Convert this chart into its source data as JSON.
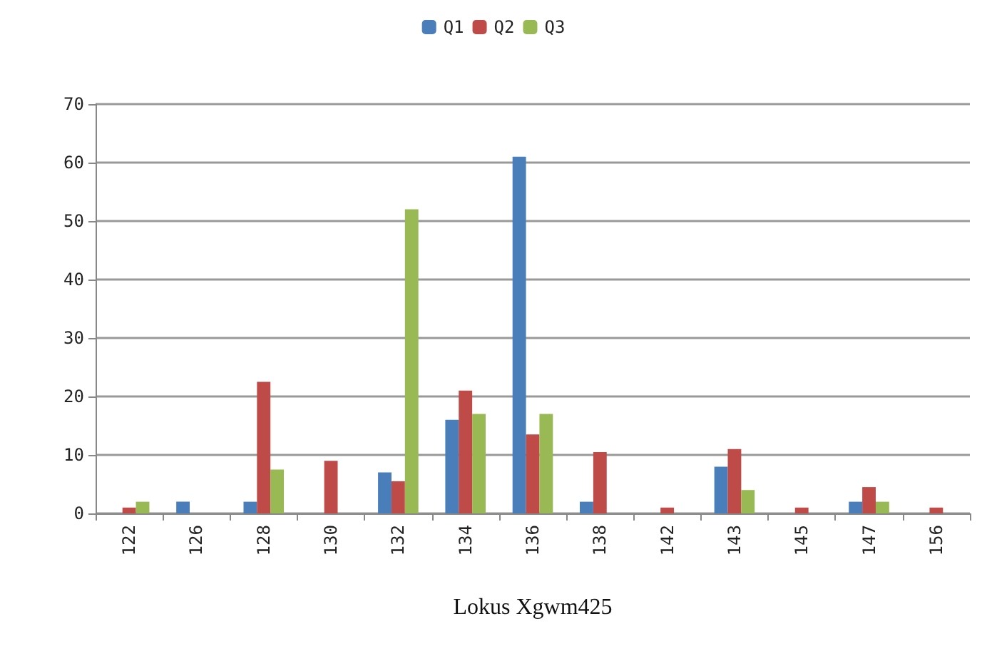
{
  "chart_data": {
    "type": "bar",
    "xlabel": "Lokus Xgwm425",
    "categories": [
      "122",
      "126",
      "128",
      "130",
      "132",
      "134",
      "136",
      "138",
      "142",
      "143",
      "145",
      "147",
      "156"
    ],
    "series": [
      {
        "name": "Q1",
        "color": "#4a7ebb",
        "values": [
          0,
          2,
          2,
          0,
          7,
          16,
          61,
          2,
          0,
          8,
          0,
          2,
          0
        ]
      },
      {
        "name": "Q2",
        "color": "#be4b48",
        "values": [
          1,
          0,
          22.5,
          9,
          5.5,
          21,
          13.5,
          10.5,
          1,
          11,
          1,
          4.5,
          1
        ]
      },
      {
        "name": "Q3",
        "color": "#98b954",
        "values": [
          2,
          0,
          7.5,
          0,
          52,
          17,
          17,
          0,
          0,
          4,
          0,
          2,
          0
        ]
      }
    ],
    "ylim": [
      0,
      70
    ],
    "yticks": [
      0,
      10,
      20,
      30,
      40,
      50,
      60,
      70
    ],
    "grid": "y",
    "legend": "top"
  }
}
